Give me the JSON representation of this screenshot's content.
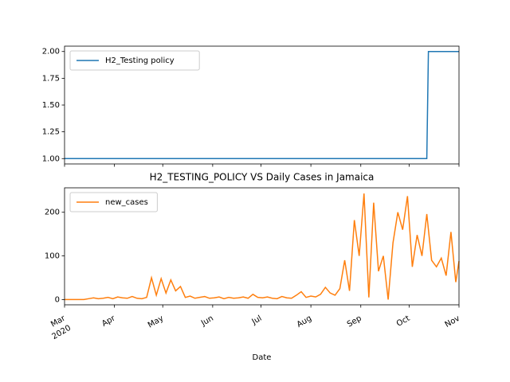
{
  "chart_data": [
    {
      "type": "line",
      "legend": "upper left",
      "xlim": [
        0,
        245
      ],
      "ylim": [
        0.95,
        2.05
      ],
      "yticks": [
        {
          "value": 1.0,
          "label": "1.00"
        },
        {
          "value": 1.25,
          "label": "1.25"
        },
        {
          "value": 1.5,
          "label": "1.50"
        },
        {
          "value": 1.75,
          "label": "1.75"
        },
        {
          "value": 2.0,
          "label": "2.00"
        }
      ],
      "series": [
        {
          "name": "H2_Testing policy",
          "color": "#1f77b4",
          "x": [
            0,
            225,
            226,
            245
          ],
          "values": [
            1,
            1,
            2,
            2
          ]
        }
      ]
    },
    {
      "type": "line",
      "title": "H2_TESTING_POLICY VS Daily Cases in Jamaica",
      "x_label": "Date",
      "legend": "upper left",
      "xlim": [
        0,
        245
      ],
      "ylim": [
        -12,
        256
      ],
      "xticks": [
        {
          "value": 0,
          "label": "Mar"
        },
        {
          "value": 31,
          "label": "Apr"
        },
        {
          "value": 61,
          "label": "May"
        },
        {
          "value": 92,
          "label": "Jun"
        },
        {
          "value": 122,
          "label": "Jul"
        },
        {
          "value": 153,
          "label": "Aug"
        },
        {
          "value": 184,
          "label": "Sep"
        },
        {
          "value": 214,
          "label": "Oct"
        },
        {
          "value": 245,
          "label": "Nov"
        }
      ],
      "xtick_year": "2020",
      "yticks": [
        0,
        100,
        200
      ],
      "series": [
        {
          "name": "new_cases",
          "color": "#ff7f0e",
          "x": [
            0,
            3,
            6,
            9,
            12,
            15,
            18,
            21,
            24,
            27,
            30,
            33,
            36,
            39,
            42,
            45,
            48,
            51,
            54,
            57,
            60,
            63,
            66,
            69,
            72,
            75,
            78,
            81,
            84,
            87,
            90,
            93,
            96,
            99,
            102,
            105,
            108,
            111,
            114,
            117,
            120,
            123,
            126,
            129,
            132,
            135,
            138,
            141,
            144,
            147,
            150,
            153,
            156,
            159,
            162,
            165,
            168,
            171,
            174,
            177,
            180,
            183,
            186,
            189,
            192,
            195,
            198,
            201,
            204,
            207,
            210,
            213,
            216,
            219,
            222,
            225,
            228,
            231,
            234,
            237,
            240,
            243,
            245
          ],
          "values": [
            0,
            0,
            0,
            0,
            0,
            2,
            4,
            2,
            3,
            5,
            2,
            6,
            4,
            3,
            7,
            3,
            2,
            5,
            50,
            10,
            48,
            15,
            45,
            20,
            30,
            5,
            8,
            3,
            5,
            7,
            3,
            4,
            6,
            2,
            5,
            3,
            4,
            6,
            3,
            12,
            5,
            4,
            6,
            3,
            2,
            7,
            4,
            3,
            10,
            18,
            5,
            8,
            6,
            12,
            28,
            15,
            10,
            25,
            90,
            20,
            182,
            100,
            243,
            5,
            222,
            65,
            100,
            0,
            130,
            200,
            160,
            237,
            75,
            148,
            100,
            196,
            90,
            75,
            95,
            55,
            155,
            40,
            88
          ]
        }
      ]
    }
  ]
}
